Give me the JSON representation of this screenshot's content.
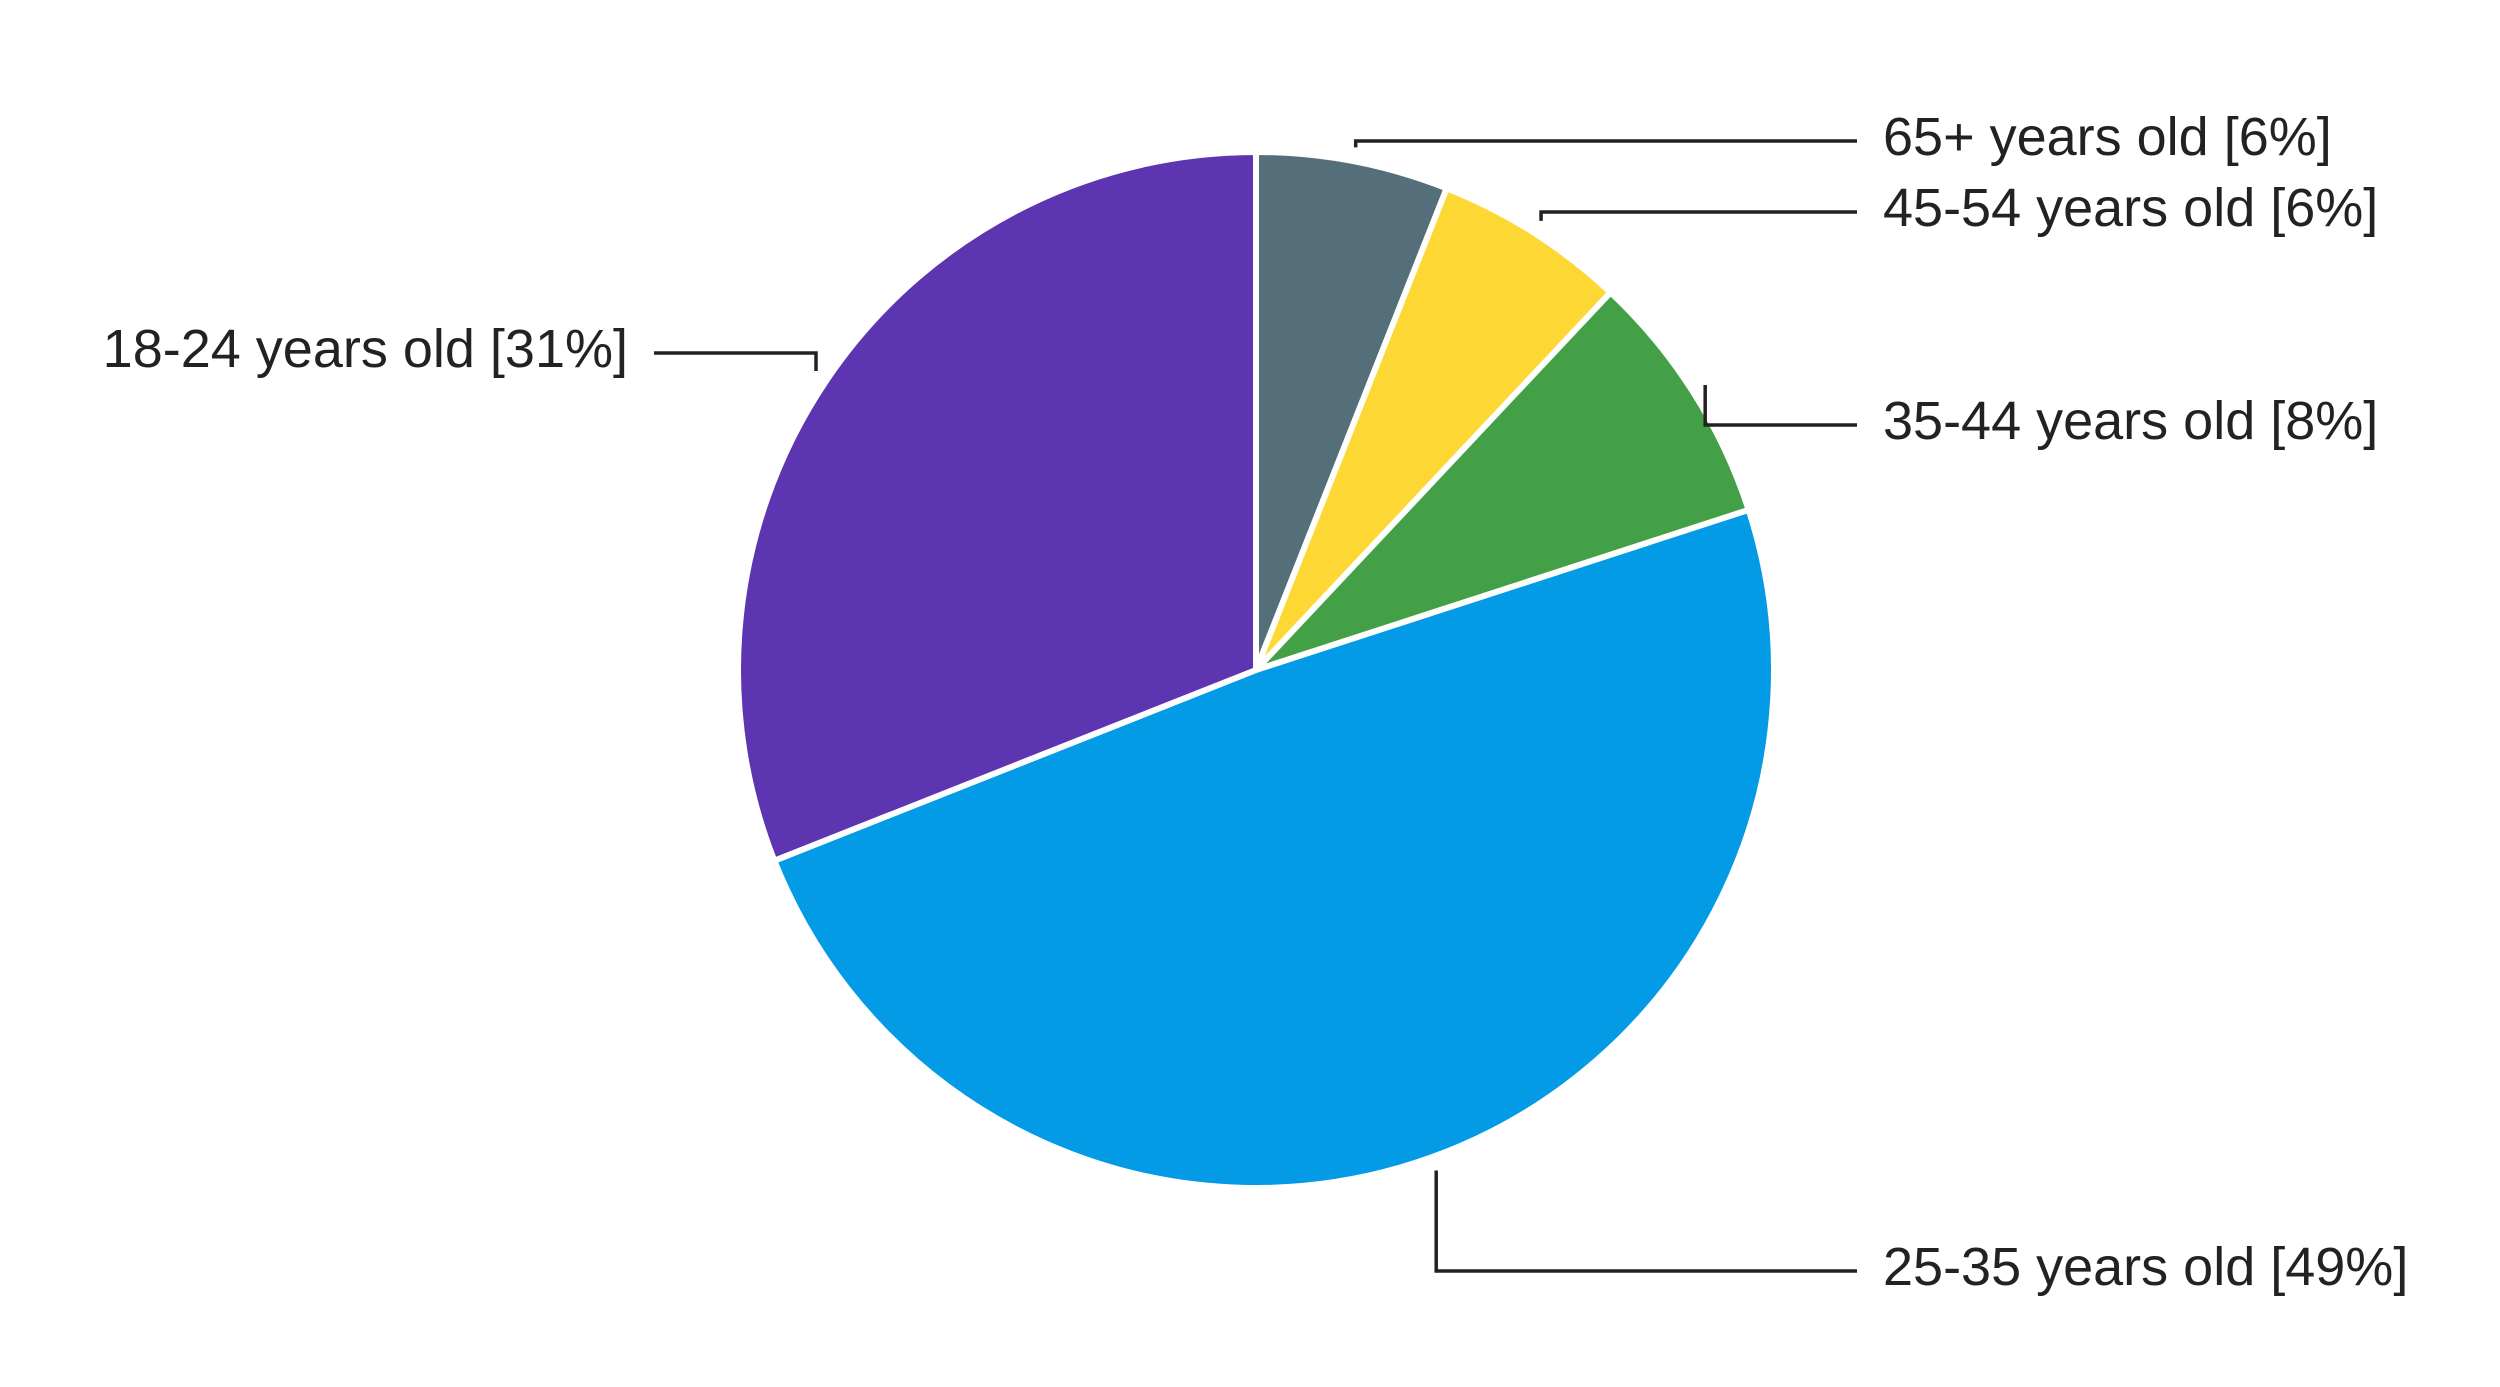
{
  "chart_data": {
    "type": "pie",
    "categories": [
      "65+ years old",
      "45-54 years old",
      "35-44 years old",
      "25-35 years old",
      "18-24 years old"
    ],
    "values": [
      6,
      6,
      8,
      49,
      31
    ],
    "value_labels": [
      "[6%]",
      "[6%]",
      "[8%]",
      "[49%]",
      "[31%]"
    ],
    "colors": [
      "#546e7a",
      "#fdd835",
      "#43a047",
      "#039be5",
      "#5e35b1"
    ]
  }
}
